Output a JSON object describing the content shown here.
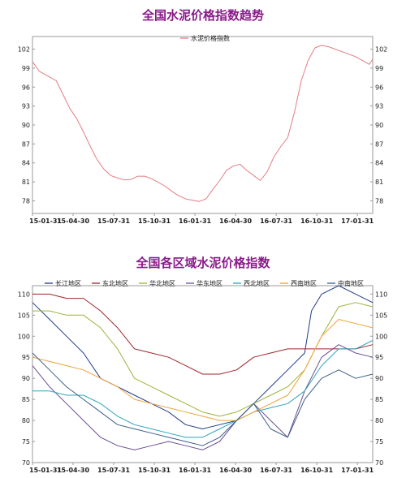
{
  "chart_data": [
    {
      "type": "line",
      "title": "全国水泥价格指数趋势",
      "x_labels": [
        "15-01-31",
        "15-04-30",
        "15-07-31",
        "15-10-31",
        "16-01-31",
        "16-04-30",
        "16-07-31",
        "16-10-31",
        "17-01-31"
      ],
      "ylim": [
        76,
        104
      ],
      "yticks": [
        78,
        81,
        84,
        87,
        90,
        93,
        96,
        99,
        102
      ],
      "legend_position": "top-center",
      "series": [
        {
          "name": "水泥价格指数",
          "color": "#e37d82",
          "x": [
            0,
            0.02,
            0.05,
            0.07,
            0.09,
            0.11,
            0.13,
            0.15,
            0.17,
            0.19,
            0.21,
            0.23,
            0.25,
            0.27,
            0.29,
            0.31,
            0.33,
            0.35,
            0.37,
            0.39,
            0.41,
            0.43,
            0.45,
            0.47,
            0.49,
            0.51,
            0.53,
            0.55,
            0.57,
            0.59,
            0.61,
            0.63,
            0.65,
            0.67,
            0.69,
            0.71,
            0.73,
            0.75,
            0.77,
            0.79,
            0.81,
            0.83,
            0.85,
            0.87,
            0.89,
            0.91,
            0.93,
            0.95,
            0.97,
            0.99,
            1.0
          ],
          "values": [
            100.0,
            98.5,
            97.6,
            97.0,
            94.8,
            92.6,
            91.0,
            88.9,
            86.6,
            84.5,
            83.0,
            82.0,
            81.6,
            81.3,
            81.4,
            81.9,
            81.9,
            81.5,
            80.9,
            80.3,
            79.5,
            78.8,
            78.3,
            78.1,
            77.9,
            78.3,
            79.8,
            81.2,
            82.8,
            83.5,
            83.8,
            82.8,
            82.0,
            81.2,
            82.6,
            85.0,
            86.6,
            88.0,
            92.0,
            97.0,
            100.2,
            102.2,
            102.6,
            102.4,
            102.0,
            101.6,
            101.2,
            100.8,
            100.2,
            99.6,
            100.4
          ]
        }
      ]
    },
    {
      "type": "line",
      "title": "全国各区域水泥价格指数",
      "x_labels": [
        "15-01-31",
        "15-04-30",
        "15-07-31",
        "15-10-31",
        "16-01-31",
        "16-04-30",
        "16-07-31",
        "16-10-31",
        "17-01-31"
      ],
      "ylim": [
        70,
        112
      ],
      "yticks": [
        70,
        75,
        80,
        85,
        90,
        95,
        100,
        105,
        110
      ],
      "legend_position": "top",
      "series": [
        {
          "name": "长江地区",
          "color": "#1f3c88",
          "x": [
            0,
            0.05,
            0.1,
            0.15,
            0.2,
            0.25,
            0.3,
            0.35,
            0.4,
            0.45,
            0.5,
            0.55,
            0.6,
            0.65,
            0.7,
            0.75,
            0.8,
            0.82,
            0.85,
            0.9,
            0.95,
            1.0
          ],
          "values": [
            108,
            104,
            100,
            96,
            90,
            88,
            86,
            84,
            82,
            79,
            78,
            79,
            80,
            84,
            88,
            92,
            96,
            106,
            110,
            112,
            110,
            108
          ]
        },
        {
          "name": "东北地区",
          "color": "#a0262b",
          "x": [
            0,
            0.05,
            0.1,
            0.15,
            0.2,
            0.25,
            0.3,
            0.35,
            0.4,
            0.45,
            0.5,
            0.55,
            0.6,
            0.65,
            0.7,
            0.75,
            0.8,
            0.85,
            0.9,
            0.95,
            1.0
          ],
          "values": [
            110,
            110,
            109,
            109,
            106,
            102,
            97,
            96,
            95,
            93,
            91,
            91,
            92,
            95,
            96,
            97,
            97,
            97,
            97,
            97,
            98
          ]
        },
        {
          "name": "华北地区",
          "color": "#9bb33a",
          "x": [
            0,
            0.05,
            0.1,
            0.15,
            0.2,
            0.25,
            0.3,
            0.35,
            0.4,
            0.45,
            0.5,
            0.55,
            0.6,
            0.65,
            0.7,
            0.75,
            0.8,
            0.85,
            0.9,
            0.95,
            1.0
          ],
          "values": [
            106,
            106,
            105,
            105,
            102,
            97,
            90,
            88,
            86,
            84,
            82,
            81,
            82,
            84,
            86,
            88,
            92,
            100,
            107,
            108,
            107
          ]
        },
        {
          "name": "华东地区",
          "color": "#6a4f96",
          "x": [
            0,
            0.05,
            0.1,
            0.15,
            0.2,
            0.25,
            0.3,
            0.35,
            0.4,
            0.45,
            0.5,
            0.55,
            0.6,
            0.65,
            0.7,
            0.75,
            0.8,
            0.85,
            0.9,
            0.95,
            1.0
          ],
          "values": [
            93,
            88,
            84,
            80,
            76,
            74,
            73,
            74,
            75,
            74,
            73,
            75,
            80,
            84,
            80,
            76,
            87,
            95,
            98,
            96,
            95
          ]
        },
        {
          "name": "西北地区",
          "color": "#2fa3bb",
          "x": [
            0,
            0.05,
            0.1,
            0.15,
            0.2,
            0.25,
            0.3,
            0.35,
            0.4,
            0.45,
            0.5,
            0.55,
            0.6,
            0.65,
            0.7,
            0.75,
            0.8,
            0.85,
            0.9,
            0.95,
            1.0
          ],
          "values": [
            87,
            87,
            86,
            86,
            84,
            81,
            79,
            78,
            77,
            76,
            76,
            78,
            80,
            82,
            83,
            84,
            87,
            93,
            97,
            97,
            99
          ]
        },
        {
          "name": "西南地区",
          "color": "#f0a23a",
          "x": [
            0,
            0.05,
            0.1,
            0.15,
            0.2,
            0.25,
            0.3,
            0.35,
            0.4,
            0.45,
            0.5,
            0.55,
            0.6,
            0.65,
            0.7,
            0.75,
            0.8,
            0.85,
            0.9,
            0.95,
            1.0
          ],
          "values": [
            95,
            94,
            93,
            92,
            90,
            88,
            85,
            84,
            83,
            82,
            81,
            80,
            80,
            82,
            84,
            86,
            92,
            100,
            104,
            103,
            102
          ]
        },
        {
          "name": "中南地区",
          "color": "#3a5f86",
          "x": [
            0,
            0.05,
            0.1,
            0.15,
            0.2,
            0.25,
            0.3,
            0.35,
            0.4,
            0.45,
            0.5,
            0.55,
            0.6,
            0.65,
            0.7,
            0.75,
            0.8,
            0.85,
            0.9,
            0.95,
            1.0
          ],
          "values": [
            96,
            92,
            88,
            85,
            82,
            79,
            78,
            77,
            76,
            75,
            74,
            76,
            80,
            84,
            78,
            76,
            85,
            90,
            92,
            90,
            91
          ]
        }
      ]
    }
  ]
}
